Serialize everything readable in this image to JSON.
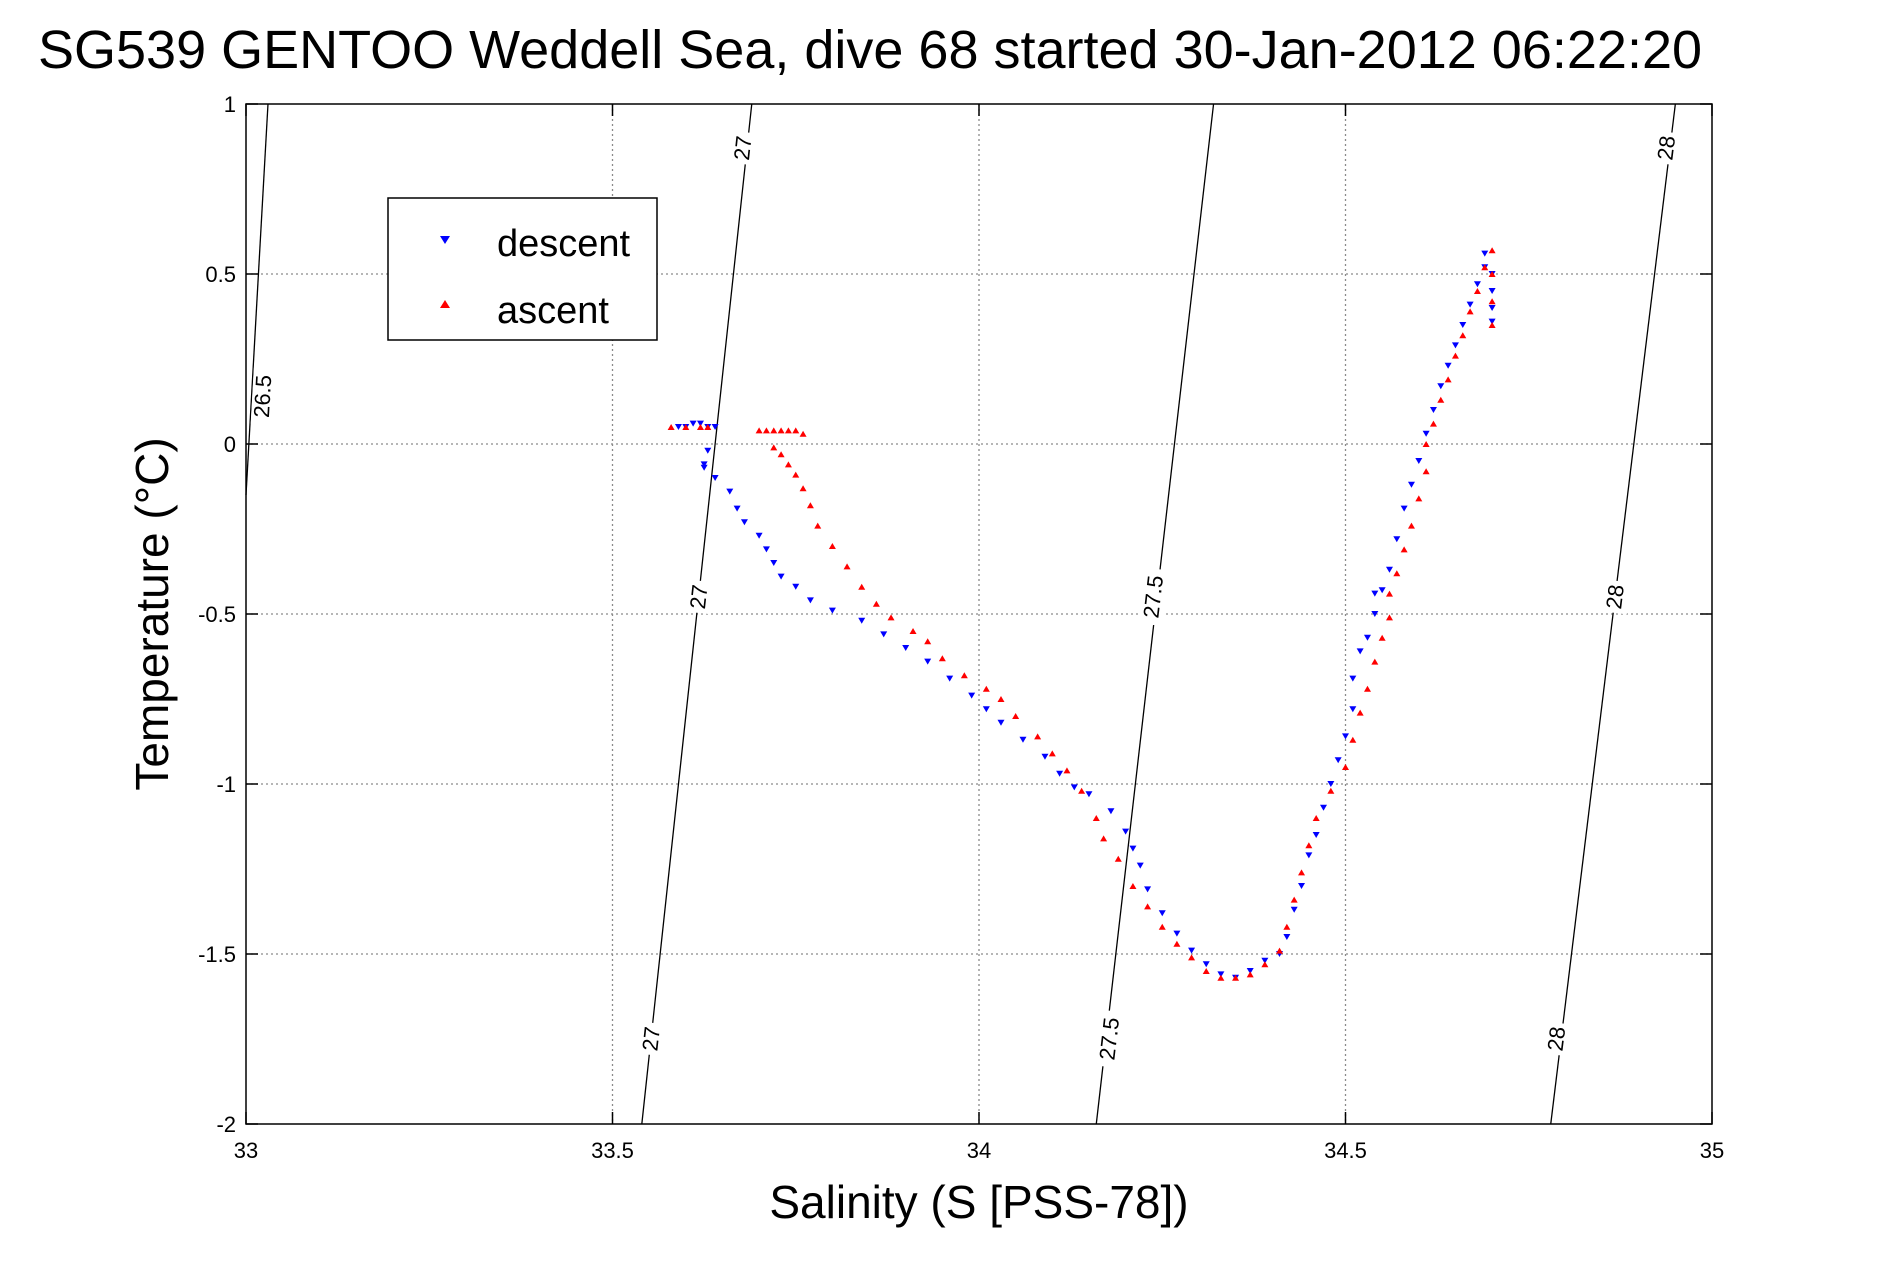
{
  "chart_data": {
    "type": "scatter",
    "title": "SG539 GENTOO Weddell Sea, dive 68 started 30-Jan-2012 06:22:20",
    "xlabel": "Salinity (S [PSS-78])",
    "ylabel": "Temperature (°C)",
    "xlim": [
      33,
      35
    ],
    "ylim": [
      -2,
      1
    ],
    "x_ticks": [
      33,
      33.5,
      34,
      34.5,
      35
    ],
    "x_tick_labels": [
      "33",
      "33.5",
      "34",
      "34.5",
      "35"
    ],
    "y_ticks": [
      -2,
      -1.5,
      -1,
      -0.5,
      0,
      0.5,
      1
    ],
    "y_tick_labels": [
      "-2",
      "-1.5",
      "-1",
      "-0.5",
      "0",
      "0.5",
      "1"
    ],
    "grid": true,
    "legend_position": "top-left",
    "series": [
      {
        "name": "descent",
        "color": "#0000ff",
        "marker": "triangle-down",
        "points": [
          [
            33.59,
            0.05
          ],
          [
            33.6,
            0.05
          ],
          [
            33.61,
            0.06
          ],
          [
            33.62,
            0.06
          ],
          [
            33.63,
            0.05
          ],
          [
            33.64,
            0.05
          ],
          [
            33.625,
            -0.06
          ],
          [
            33.625,
            -0.07
          ],
          [
            33.63,
            -0.02
          ],
          [
            33.64,
            -0.1
          ],
          [
            33.66,
            -0.14
          ],
          [
            33.67,
            -0.19
          ],
          [
            33.68,
            -0.23
          ],
          [
            33.7,
            -0.27
          ],
          [
            33.71,
            -0.31
          ],
          [
            33.72,
            -0.35
          ],
          [
            33.73,
            -0.39
          ],
          [
            33.75,
            -0.42
          ],
          [
            33.77,
            -0.46
          ],
          [
            33.8,
            -0.49
          ],
          [
            33.84,
            -0.52
          ],
          [
            33.87,
            -0.56
          ],
          [
            33.9,
            -0.6
          ],
          [
            33.93,
            -0.64
          ],
          [
            33.96,
            -0.69
          ],
          [
            33.99,
            -0.74
          ],
          [
            34.01,
            -0.78
          ],
          [
            34.03,
            -0.82
          ],
          [
            34.06,
            -0.87
          ],
          [
            34.09,
            -0.92
          ],
          [
            34.11,
            -0.97
          ],
          [
            34.13,
            -1.01
          ],
          [
            34.15,
            -1.03
          ],
          [
            34.18,
            -1.08
          ],
          [
            34.2,
            -1.14
          ],
          [
            34.21,
            -1.19
          ],
          [
            34.22,
            -1.24
          ],
          [
            34.23,
            -1.31
          ],
          [
            34.25,
            -1.38
          ],
          [
            34.27,
            -1.44
          ],
          [
            34.29,
            -1.49
          ],
          [
            34.31,
            -1.53
          ],
          [
            34.33,
            -1.56
          ],
          [
            34.35,
            -1.57
          ],
          [
            34.37,
            -1.55
          ],
          [
            34.39,
            -1.52
          ],
          [
            34.41,
            -1.5
          ],
          [
            34.42,
            -1.45
          ],
          [
            34.43,
            -1.37
          ],
          [
            34.44,
            -1.3
          ],
          [
            34.45,
            -1.21
          ],
          [
            34.46,
            -1.15
          ],
          [
            34.47,
            -1.07
          ],
          [
            34.48,
            -1.0
          ],
          [
            34.49,
            -0.93
          ],
          [
            34.5,
            -0.86
          ],
          [
            34.51,
            -0.78
          ],
          [
            34.51,
            -0.69
          ],
          [
            34.52,
            -0.61
          ],
          [
            34.53,
            -0.57
          ],
          [
            34.54,
            -0.5
          ],
          [
            34.54,
            -0.44
          ],
          [
            34.55,
            -0.43
          ],
          [
            34.56,
            -0.37
          ],
          [
            34.57,
            -0.28
          ],
          [
            34.58,
            -0.19
          ],
          [
            34.59,
            -0.12
          ],
          [
            34.6,
            -0.05
          ],
          [
            34.61,
            0.03
          ],
          [
            34.62,
            0.1
          ],
          [
            34.63,
            0.17
          ],
          [
            34.64,
            0.23
          ],
          [
            34.65,
            0.29
          ],
          [
            34.66,
            0.35
          ],
          [
            34.67,
            0.41
          ],
          [
            34.68,
            0.47
          ],
          [
            34.69,
            0.52
          ],
          [
            34.69,
            0.56
          ],
          [
            34.7,
            0.5
          ],
          [
            34.7,
            0.45
          ],
          [
            34.7,
            0.4
          ],
          [
            34.7,
            0.36
          ]
        ]
      },
      {
        "name": "ascent",
        "color": "#ff0000",
        "marker": "triangle-up",
        "points": [
          [
            33.58,
            0.05
          ],
          [
            33.6,
            0.05
          ],
          [
            33.62,
            0.05
          ],
          [
            33.63,
            0.05
          ],
          [
            33.7,
            0.04
          ],
          [
            33.71,
            0.04
          ],
          [
            33.72,
            0.04
          ],
          [
            33.73,
            0.04
          ],
          [
            33.74,
            0.04
          ],
          [
            33.75,
            0.04
          ],
          [
            33.76,
            0.03
          ],
          [
            33.72,
            -0.01
          ],
          [
            33.73,
            -0.03
          ],
          [
            33.74,
            -0.06
          ],
          [
            33.75,
            -0.09
          ],
          [
            33.76,
            -0.13
          ],
          [
            33.77,
            -0.18
          ],
          [
            33.78,
            -0.24
          ],
          [
            33.8,
            -0.3
          ],
          [
            33.82,
            -0.36
          ],
          [
            33.84,
            -0.42
          ],
          [
            33.86,
            -0.47
          ],
          [
            33.88,
            -0.51
          ],
          [
            33.91,
            -0.55
          ],
          [
            33.93,
            -0.58
          ],
          [
            33.95,
            -0.63
          ],
          [
            33.98,
            -0.68
          ],
          [
            34.01,
            -0.72
          ],
          [
            34.03,
            -0.75
          ],
          [
            34.05,
            -0.8
          ],
          [
            34.08,
            -0.86
          ],
          [
            34.1,
            -0.91
          ],
          [
            34.12,
            -0.96
          ],
          [
            34.14,
            -1.02
          ],
          [
            34.16,
            -1.1
          ],
          [
            34.17,
            -1.16
          ],
          [
            34.19,
            -1.22
          ],
          [
            34.21,
            -1.3
          ],
          [
            34.23,
            -1.36
          ],
          [
            34.25,
            -1.42
          ],
          [
            34.27,
            -1.47
          ],
          [
            34.29,
            -1.51
          ],
          [
            34.31,
            -1.55
          ],
          [
            34.33,
            -1.57
          ],
          [
            34.35,
            -1.57
          ],
          [
            34.37,
            -1.56
          ],
          [
            34.39,
            -1.53
          ],
          [
            34.41,
            -1.49
          ],
          [
            34.42,
            -1.42
          ],
          [
            34.43,
            -1.34
          ],
          [
            34.44,
            -1.26
          ],
          [
            34.45,
            -1.18
          ],
          [
            34.46,
            -1.1
          ],
          [
            34.48,
            -1.02
          ],
          [
            34.5,
            -0.95
          ],
          [
            34.51,
            -0.87
          ],
          [
            34.52,
            -0.79
          ],
          [
            34.53,
            -0.72
          ],
          [
            34.54,
            -0.64
          ],
          [
            34.55,
            -0.57
          ],
          [
            34.56,
            -0.51
          ],
          [
            34.56,
            -0.44
          ],
          [
            34.57,
            -0.38
          ],
          [
            34.58,
            -0.31
          ],
          [
            34.59,
            -0.24
          ],
          [
            34.6,
            -0.16
          ],
          [
            34.61,
            -0.08
          ],
          [
            34.61,
            0.0
          ],
          [
            34.62,
            0.06
          ],
          [
            34.63,
            0.13
          ],
          [
            34.64,
            0.19
          ],
          [
            34.65,
            0.26
          ],
          [
            34.66,
            0.32
          ],
          [
            34.67,
            0.39
          ],
          [
            34.68,
            0.45
          ],
          [
            34.69,
            0.52
          ],
          [
            34.7,
            0.57
          ],
          [
            34.7,
            0.5
          ],
          [
            34.7,
            0.42
          ],
          [
            34.7,
            0.35
          ]
        ]
      }
    ],
    "isopycnals": [
      {
        "label": "26.5",
        "ends": [
          [
            33.03,
            1.0
          ],
          [
            33.0,
            -0.15
          ]
        ],
        "label_positions": [
          [
            33.025,
            0.14
          ]
        ]
      },
      {
        "label": "27",
        "ends": [
          [
            33.69,
            1.0
          ],
          [
            33.54,
            -2.0
          ]
        ],
        "label_positions": [
          [
            33.68,
            0.87
          ],
          [
            33.62,
            -0.45
          ],
          [
            33.555,
            -1.75
          ]
        ]
      },
      {
        "label": "27.5",
        "ends": [
          [
            34.32,
            1.0
          ],
          [
            34.16,
            -2.0
          ]
        ],
        "label_positions": [
          [
            34.24,
            -0.45
          ],
          [
            34.18,
            -1.75
          ]
        ]
      },
      {
        "label": "28",
        "ends": [
          [
            34.95,
            1.0
          ],
          [
            34.78,
            -2.0
          ]
        ],
        "label_positions": [
          [
            34.94,
            0.87
          ],
          [
            34.87,
            -0.45
          ],
          [
            34.79,
            -1.75
          ]
        ]
      }
    ]
  },
  "legend": {
    "descent_label": "descent",
    "ascent_label": "ascent"
  }
}
